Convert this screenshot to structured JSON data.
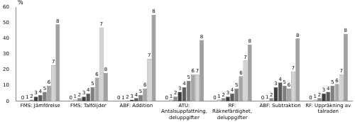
{
  "chart_data": {
    "type": "bar",
    "y_label": "%",
    "categories": [
      "FMS: Jämförelse",
      "FMS: Talföljder",
      "ABF: Addition",
      "ATU: Antalsuppfattning, deluppgifter",
      "RF: Räknefärdighet, deluppgifter",
      "ABF: Subtraktion",
      "RF: Uppräkning av talraden"
    ],
    "series": [
      {
        "name": "0",
        "color": "#eeeeee",
        "values": [
          0,
          0.2,
          0,
          0,
          0,
          0,
          0
        ]
      },
      {
        "name": "1",
        "color": "#c8c8c8",
        "values": [
          0.3,
          1,
          0,
          1,
          1,
          0.5,
          1
        ]
      },
      {
        "name": "2",
        "color": "#8c8c8c",
        "values": [
          1,
          2,
          0.5,
          3,
          2,
          2,
          2
        ]
      },
      {
        "name": "3",
        "color": "#3c3c3c",
        "values": [
          3,
          3,
          1,
          6,
          3,
          9,
          5
        ]
      },
      {
        "name": "4",
        "color": "#5a5a5a",
        "values": [
          4,
          5,
          2,
          9,
          5,
          12,
          6
        ]
      },
      {
        "name": "5",
        "color": "#7f7f7f",
        "values": [
          6,
          9,
          4,
          13,
          8,
          10,
          10
        ]
      },
      {
        "name": "6",
        "color": "#a6a6a6",
        "values": [
          10,
          15,
          8,
          17,
          16,
          8,
          11
        ]
      },
      {
        "name": "7",
        "color": "#d4d4d4",
        "values": [
          23,
          47,
          27,
          17,
          26,
          19,
          17
        ]
      },
      {
        "name": "8",
        "color": "#a0a0a0",
        "values": [
          49,
          18,
          55,
          39,
          36,
          40,
          43
        ]
      }
    ],
    "ylim": [
      0,
      60
    ],
    "yticks": [
      0,
      10,
      20,
      30,
      40,
      50,
      60
    ],
    "grid": false,
    "legend": "none"
  }
}
